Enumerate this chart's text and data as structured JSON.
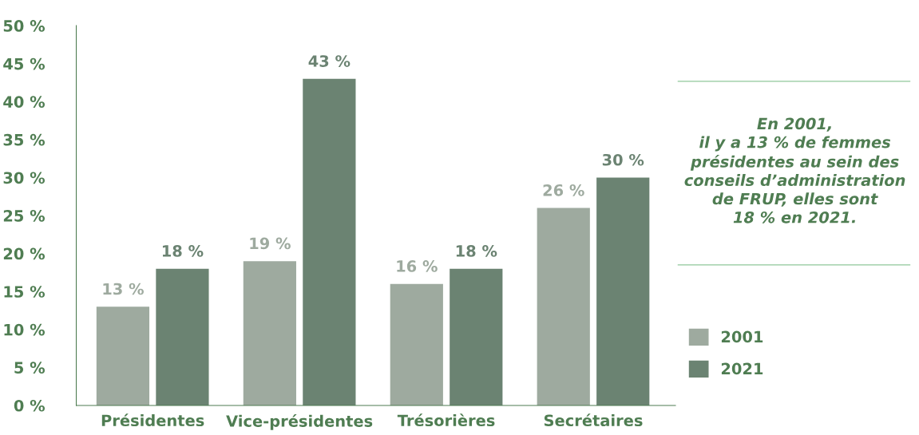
{
  "chart_data": {
    "type": "bar",
    "categories": [
      "Présidentes",
      "Vice-présidentes",
      "Trésorières",
      "Secrétaires"
    ],
    "series": [
      {
        "name": "2001",
        "color": "#9eaa9f",
        "values": [
          13,
          19,
          16,
          26
        ],
        "value_labels": [
          "13 %",
          "19 %",
          "16 %",
          "26 %"
        ]
      },
      {
        "name": "2021",
        "color": "#6b8372",
        "values": [
          18,
          43,
          18,
          30
        ],
        "value_labels": [
          "18 %",
          "43 %",
          "18 %",
          "30 %"
        ]
      }
    ],
    "ylim": [
      0,
      50
    ],
    "yticks": [
      {
        "value": 0,
        "label": "0 %"
      },
      {
        "value": 5,
        "label": "5 %"
      },
      {
        "value": 10,
        "label": "10 %"
      },
      {
        "value": 15,
        "label": "15 %"
      },
      {
        "value": 20,
        "label": "20 %"
      },
      {
        "value": 25,
        "label": "25 %"
      },
      {
        "value": 30,
        "label": "30 %"
      },
      {
        "value": 35,
        "label": "35 %"
      },
      {
        "value": 40,
        "label": "40 %"
      },
      {
        "value": 45,
        "label": "45 %"
      },
      {
        "value": 50,
        "label": "50 %"
      }
    ],
    "grid": false,
    "legend": "bottom right",
    "annotations": [
      "En 2001,\nil y a 13 % de femmes\nprésidentes au sein des\nconseils d’administration\nde FRUP, elles sont\n18 % en 2021."
    ]
  }
}
